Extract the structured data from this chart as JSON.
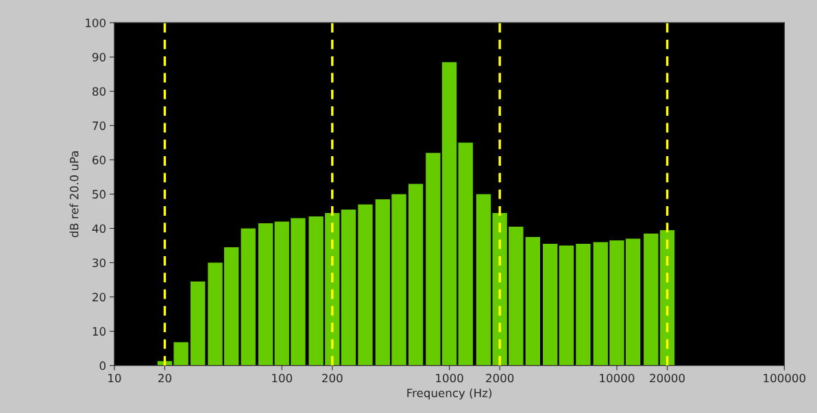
{
  "chart_data": {
    "type": "bar",
    "xlabel": "Frequency (Hz)",
    "ylabel": "dB ref 20.0 uPa",
    "x": [
      20,
      25,
      31.5,
      40,
      50,
      63,
      80,
      100,
      125,
      160,
      200,
      250,
      315,
      400,
      500,
      630,
      800,
      1000,
      1250,
      1600,
      2000,
      2500,
      3150,
      4000,
      5000,
      6300,
      8000,
      10000,
      12500,
      16000,
      20000
    ],
    "values": [
      1.3,
      6.8,
      24.5,
      30,
      34.5,
      40,
      41.5,
      42,
      43,
      43.5,
      44.5,
      45.5,
      47,
      48.5,
      50,
      53,
      62,
      88.5,
      65,
      50,
      44.5,
      40.5,
      37.5,
      35.5,
      35,
      35.5,
      36,
      36.5,
      37,
      38.5,
      39.5
    ],
    "color": "#66cc00",
    "log": "x",
    "xlim": [
      10,
      100000
    ],
    "xticks": [
      10,
      20,
      100,
      200,
      1000,
      2000,
      10000,
      20000,
      100000
    ],
    "ylim": [
      0,
      100
    ],
    "yticks": [
      0,
      10,
      20,
      30,
      40,
      50,
      60,
      70,
      80,
      90,
      100
    ],
    "grid": false,
    "ref_lines": [
      {
        "axis": "x",
        "value": 20,
        "color": "#ffff00",
        "line_style": "dashed"
      },
      {
        "axis": "x",
        "value": 200,
        "color": "#ffff00",
        "line_style": "dashed"
      },
      {
        "axis": "x",
        "value": 2000,
        "color": "#ffff00",
        "line_style": "dashed"
      },
      {
        "axis": "x",
        "value": 20000,
        "color": "#ffff00",
        "line_style": "dashed"
      }
    ]
  }
}
